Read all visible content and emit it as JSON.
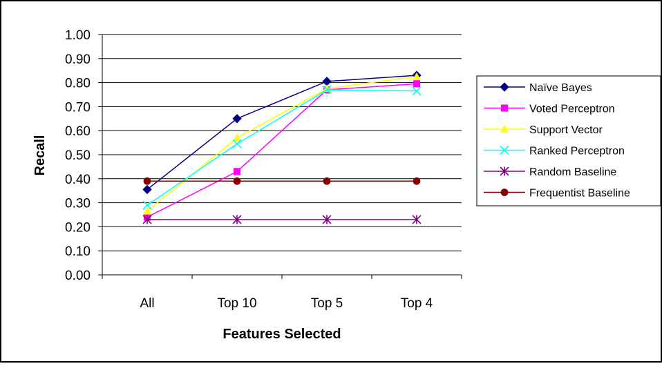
{
  "chart_data": {
    "type": "line",
    "title": "",
    "xlabel": "Features Selected",
    "ylabel": "Recall",
    "categories": [
      "All",
      "Top 10",
      "Top 5",
      "Top 4"
    ],
    "ylim": [
      0,
      1.0
    ],
    "y_ticks": [
      "0.00",
      "0.10",
      "0.20",
      "0.30",
      "0.40",
      "0.50",
      "0.60",
      "0.70",
      "0.80",
      "0.90",
      "1.00"
    ],
    "grid": "horizontal",
    "legend_position": "right",
    "series": [
      {
        "name": "Naïve Bayes",
        "color": "#000080",
        "marker": "diamond",
        "values": [
          0.355,
          0.65,
          0.805,
          0.83
        ]
      },
      {
        "name": "Voted Perceptron",
        "color": "#ff00ff",
        "marker": "square",
        "values": [
          0.24,
          0.43,
          0.77,
          0.795
        ]
      },
      {
        "name": "Support Vector",
        "color": "#ffff00",
        "marker": "triangle",
        "values": [
          0.265,
          0.57,
          0.775,
          0.825
        ]
      },
      {
        "name": "Ranked Perceptron",
        "color": "#00ffff",
        "marker": "x",
        "values": [
          0.29,
          0.545,
          0.77,
          0.765
        ]
      },
      {
        "name": "Random Baseline",
        "color": "#800080",
        "marker": "star",
        "values": [
          0.23,
          0.23,
          0.23,
          0.23
        ]
      },
      {
        "name": "Frequentist Baseline",
        "color": "#800000",
        "marker": "circle",
        "values": [
          0.39,
          0.39,
          0.39,
          0.39
        ]
      }
    ]
  }
}
